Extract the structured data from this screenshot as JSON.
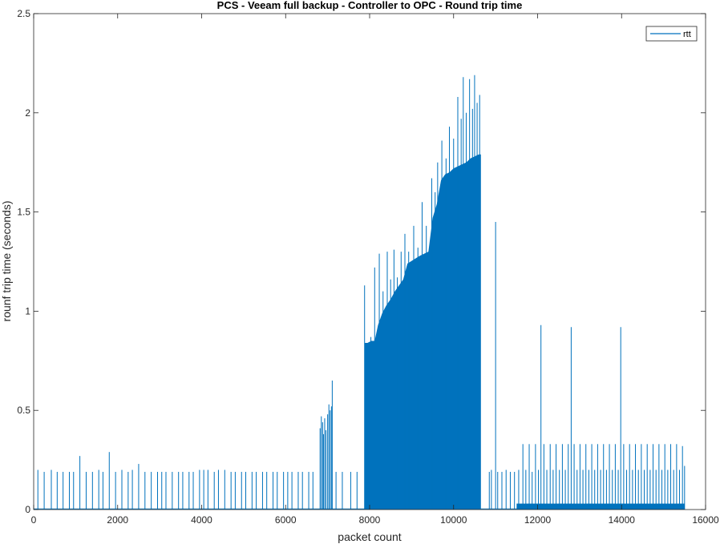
{
  "chart_data": {
    "type": "line",
    "title": "PCS - Veeam full backup - Controller to OPC - Round trip time",
    "xlabel": "packet count",
    "ylabel": "rounf trip time (seconds)",
    "xlim": [
      0,
      16000
    ],
    "ylim": [
      0,
      2.5
    ],
    "xticks": [
      0,
      2000,
      4000,
      6000,
      8000,
      10000,
      12000,
      14000,
      16000
    ],
    "xtick_labels": [
      "0",
      "2000",
      "4000",
      "6000",
      "8000",
      "10000",
      "12000",
      "14000",
      "16000"
    ],
    "yticks": [
      0,
      0.5,
      1,
      1.5,
      2,
      2.5
    ],
    "ytick_labels": [
      "0",
      "0.5",
      "1",
      "1.5",
      "2",
      "2.5"
    ],
    "grid": false,
    "legend": {
      "position": "top-right",
      "entries": [
        "rtt"
      ]
    },
    "colors": {
      "series": "#0072BD",
      "axes": "#262626"
    },
    "series": [
      {
        "name": "rtt",
        "baseline": 0.003,
        "spikes": [
          [
            100,
            0.2
          ],
          [
            250,
            0.19
          ],
          [
            420,
            0.2
          ],
          [
            560,
            0.19
          ],
          [
            700,
            0.19
          ],
          [
            850,
            0.19
          ],
          [
            950,
            0.19
          ],
          [
            1100,
            0.27
          ],
          [
            1250,
            0.19
          ],
          [
            1400,
            0.19
          ],
          [
            1550,
            0.2
          ],
          [
            1650,
            0.19
          ],
          [
            1800,
            0.29
          ],
          [
            1950,
            0.19
          ],
          [
            2100,
            0.2
          ],
          [
            2250,
            0.19
          ],
          [
            2350,
            0.2
          ],
          [
            2500,
            0.23
          ],
          [
            2650,
            0.19
          ],
          [
            2800,
            0.19
          ],
          [
            2950,
            0.19
          ],
          [
            3050,
            0.19
          ],
          [
            3150,
            0.19
          ],
          [
            3300,
            0.19
          ],
          [
            3450,
            0.19
          ],
          [
            3550,
            0.19
          ],
          [
            3700,
            0.19
          ],
          [
            3800,
            0.19
          ],
          [
            3950,
            0.2
          ],
          [
            4050,
            0.2
          ],
          [
            4150,
            0.2
          ],
          [
            4300,
            0.19
          ],
          [
            4400,
            0.2
          ],
          [
            4550,
            0.2
          ],
          [
            4700,
            0.19
          ],
          [
            4800,
            0.19
          ],
          [
            4950,
            0.19
          ],
          [
            5050,
            0.19
          ],
          [
            5200,
            0.19
          ],
          [
            5300,
            0.19
          ],
          [
            5450,
            0.19
          ],
          [
            5550,
            0.19
          ],
          [
            5700,
            0.19
          ],
          [
            5800,
            0.19
          ],
          [
            5950,
            0.19
          ],
          [
            6050,
            0.19
          ],
          [
            6150,
            0.19
          ],
          [
            6300,
            0.19
          ],
          [
            6400,
            0.19
          ],
          [
            6550,
            0.19
          ],
          [
            6650,
            0.19
          ],
          [
            6820,
            0.41
          ],
          [
            6850,
            0.47
          ],
          [
            6880,
            0.44
          ],
          [
            6900,
            0.38
          ],
          [
            6930,
            0.46
          ],
          [
            6960,
            0.4
          ],
          [
            7000,
            0.48
          ],
          [
            7030,
            0.53
          ],
          [
            7060,
            0.5
          ],
          [
            7090,
            0.52
          ],
          [
            7110,
            0.65
          ],
          [
            7200,
            0.19
          ],
          [
            7350,
            0.19
          ],
          [
            7550,
            0.19
          ],
          [
            7700,
            0.19
          ],
          [
            11000,
            1.45
          ],
          [
            10900,
            0.2
          ],
          [
            10850,
            0.19
          ],
          [
            11050,
            0.19
          ],
          [
            11150,
            0.19
          ],
          [
            11250,
            0.2
          ],
          [
            11350,
            0.19
          ],
          [
            11450,
            0.19
          ],
          [
            11550,
            0.2
          ],
          [
            11650,
            0.33
          ],
          [
            11720,
            0.2
          ],
          [
            11800,
            0.33
          ],
          [
            11870,
            0.19
          ],
          [
            11950,
            0.33
          ],
          [
            12020,
            0.2
          ],
          [
            12080,
            0.93
          ],
          [
            12150,
            0.33
          ],
          [
            12220,
            0.2
          ],
          [
            12300,
            0.33
          ],
          [
            12370,
            0.2
          ],
          [
            12440,
            0.33
          ],
          [
            12520,
            0.2
          ],
          [
            12590,
            0.33
          ],
          [
            12660,
            0.2
          ],
          [
            12730,
            0.33
          ],
          [
            12800,
            0.92
          ],
          [
            12870,
            0.33
          ],
          [
            12940,
            0.2
          ],
          [
            13010,
            0.33
          ],
          [
            13080,
            0.2
          ],
          [
            13150,
            0.33
          ],
          [
            13220,
            0.2
          ],
          [
            13290,
            0.33
          ],
          [
            13360,
            0.2
          ],
          [
            13430,
            0.33
          ],
          [
            13500,
            0.2
          ],
          [
            13570,
            0.33
          ],
          [
            13640,
            0.2
          ],
          [
            13710,
            0.33
          ],
          [
            13780,
            0.2
          ],
          [
            13850,
            0.33
          ],
          [
            13920,
            0.2
          ],
          [
            13980,
            0.92
          ],
          [
            14050,
            0.33
          ],
          [
            14120,
            0.2
          ],
          [
            14190,
            0.33
          ],
          [
            14260,
            0.2
          ],
          [
            14330,
            0.33
          ],
          [
            14400,
            0.2
          ],
          [
            14470,
            0.33
          ],
          [
            14540,
            0.2
          ],
          [
            14610,
            0.33
          ],
          [
            14680,
            0.2
          ],
          [
            14750,
            0.33
          ],
          [
            14820,
            0.2
          ],
          [
            14890,
            0.33
          ],
          [
            14960,
            0.2
          ],
          [
            15030,
            0.33
          ],
          [
            15100,
            0.2
          ],
          [
            15170,
            0.33
          ],
          [
            15240,
            0.2
          ],
          [
            15310,
            0.33
          ],
          [
            15380,
            0.2
          ],
          [
            15450,
            0.32
          ],
          [
            15500,
            0.22
          ]
        ],
        "dense_band": [
          [
            7880,
            0.84
          ],
          [
            7950,
            0.84
          ],
          [
            8040,
            0.85
          ],
          [
            8120,
            0.85
          ],
          [
            8200,
            0.93
          ],
          [
            8300,
            0.99
          ],
          [
            8400,
            1.03
          ],
          [
            8500,
            1.06
          ],
          [
            8600,
            1.1
          ],
          [
            8700,
            1.13
          ],
          [
            8800,
            1.16
          ],
          [
            8900,
            1.24
          ],
          [
            9050,
            1.26
          ],
          [
            9200,
            1.28
          ],
          [
            9300,
            1.29
          ],
          [
            9400,
            1.3
          ],
          [
            9500,
            1.47
          ],
          [
            9600,
            1.54
          ],
          [
            9700,
            1.66
          ],
          [
            9800,
            1.69
          ],
          [
            9900,
            1.7
          ],
          [
            10000,
            1.72
          ],
          [
            10100,
            1.73
          ],
          [
            10200,
            1.74
          ],
          [
            10300,
            1.75
          ],
          [
            10400,
            1.77
          ],
          [
            10500,
            1.78
          ],
          [
            10600,
            1.79
          ],
          [
            10650,
            1.79
          ]
        ],
        "band_peaks": [
          [
            7880,
            1.13
          ],
          [
            8030,
            0.87
          ],
          [
            8120,
            1.22
          ],
          [
            8230,
            1.29
          ],
          [
            8320,
            1.1
          ],
          [
            8420,
            1.3
          ],
          [
            8500,
            1.16
          ],
          [
            8580,
            1.31
          ],
          [
            8660,
            1.17
          ],
          [
            8750,
            1.3
          ],
          [
            8840,
            1.39
          ],
          [
            8930,
            1.3
          ],
          [
            9050,
            1.43
          ],
          [
            9150,
            1.32
          ],
          [
            9250,
            1.55
          ],
          [
            9350,
            1.43
          ],
          [
            9480,
            1.67
          ],
          [
            9560,
            1.6
          ],
          [
            9620,
            1.75
          ],
          [
            9720,
            1.86
          ],
          [
            9820,
            1.77
          ],
          [
            9900,
            1.93
          ],
          [
            10000,
            1.87
          ],
          [
            10100,
            2.08
          ],
          [
            10180,
            1.97
          ],
          [
            10230,
            2.18
          ],
          [
            10300,
            2.0
          ],
          [
            10380,
            2.17
          ],
          [
            10450,
            2.02
          ],
          [
            10500,
            2.19
          ],
          [
            10560,
            2.05
          ],
          [
            10620,
            2.09
          ]
        ],
        "noise_band": {
          "x_range": [
            11500,
            15500
          ],
          "max": 0.03
        }
      }
    ]
  }
}
